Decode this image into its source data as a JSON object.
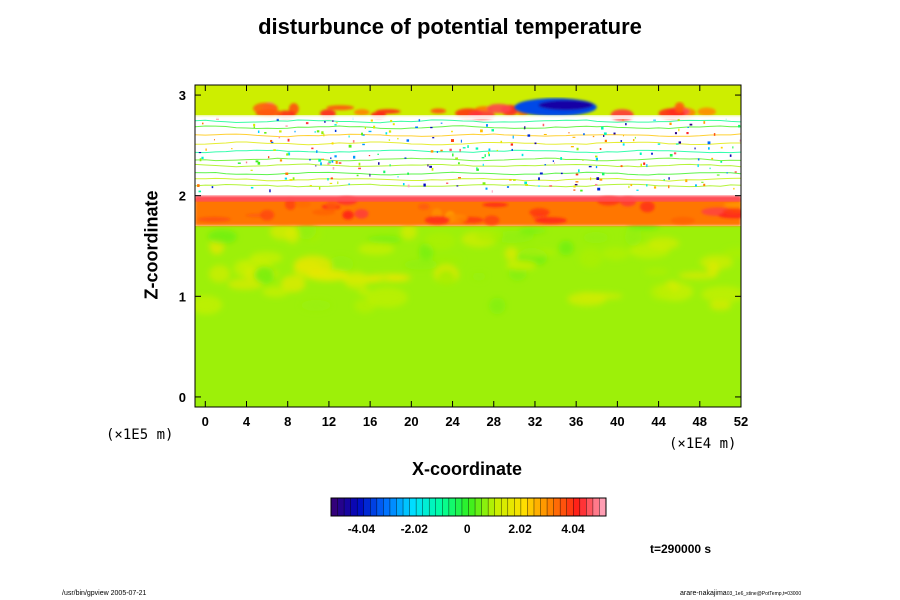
{
  "chart_data": {
    "type": "heatmap",
    "title": "disturbunce of potential temperature",
    "xlabel": "X-coordinate",
    "ylabel": "Z-coordinate",
    "x_units": "(×1E4 m)",
    "y_units": "(×1E5 m)",
    "x_ticks": [
      "0",
      "4",
      "8",
      "12",
      "16",
      "20",
      "24",
      "28",
      "32",
      "36",
      "40",
      "44",
      "48",
      "52"
    ],
    "y_ticks": [
      "0",
      "1",
      "2",
      "3"
    ],
    "xlim": [
      -1,
      52
    ],
    "ylim": [
      -0.1,
      3.1
    ],
    "field_levels": {
      "lower_layer_z": [
        -0.1,
        1.7
      ],
      "lower_layer_value": 0.8,
      "warm_band_z": [
        1.7,
        1.97
      ],
      "warm_band_value": 3.3,
      "inversion_z": 1.97,
      "inversion_value": 4.6,
      "noisy_layer_z": [
        2.05,
        2.78
      ],
      "upper_layer_z": [
        2.78,
        3.1
      ],
      "upper_layer_value": 1.2,
      "cold_anomaly_x": [
        30,
        38
      ],
      "cold_anomaly_value": -3.5
    },
    "colorbar": {
      "ticks": [
        "-4.04",
        "-2.02",
        "0",
        "2.02",
        "4.04"
      ],
      "tick_values": [
        -4.04,
        -2.02,
        0,
        2.02,
        4.04
      ],
      "min": -5.2,
      "max": 5.3,
      "colors": [
        "#3a0070",
        "#0008c0",
        "#0070ff",
        "#00e0ff",
        "#00ffa0",
        "#30f020",
        "#c8f000",
        "#ffe000",
        "#ff8000",
        "#ff1a1a",
        "#ffb0c8"
      ]
    },
    "time_label": "t=290000 s"
  },
  "footer": {
    "left": "/usr/bin/gpview 2005-07-21",
    "right_main": "arare-nakajima",
    "right_small": "03_1e6_stine@PotTemp,t=03000"
  }
}
